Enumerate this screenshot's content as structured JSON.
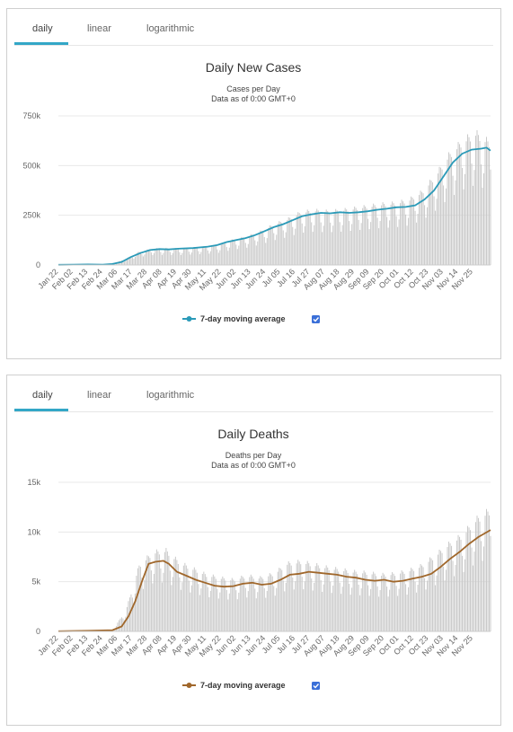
{
  "panels": [
    {
      "tabs": [
        "daily",
        "linear",
        "logarithmic"
      ],
      "active_tab": "daily"
    },
    {
      "tabs": [
        "daily",
        "linear",
        "logarithmic"
      ],
      "active_tab": "daily"
    }
  ],
  "colors": {
    "cases_line": "#2a9ab8",
    "deaths_line": "#a0672b",
    "bars": "#c9c9c9",
    "checkbox": "#3a6fd8",
    "tab_underline": "#33a7c7"
  },
  "chart_data": [
    {
      "type": "bar",
      "title": "Daily New Cases",
      "subtitle_lines": [
        "Cases per Day",
        "Data as of 0:00 GMT+0"
      ],
      "xlabel": "",
      "ylabel": "",
      "ylim": [
        0,
        750000
      ],
      "yticks": [
        0,
        250000,
        500000,
        750000
      ],
      "ytick_labels": [
        "0",
        "250k",
        "500k",
        "750k"
      ],
      "xtick_labels": [
        "Jan 22",
        "Feb 02",
        "Feb 13",
        "Feb 24",
        "Mar 06",
        "Mar 17",
        "Mar 28",
        "Apr 08",
        "Apr 19",
        "Apr 30",
        "May 11",
        "May 22",
        "Jun 02",
        "Jun 13",
        "Jun 24",
        "Jul 05",
        "Jul 16",
        "Jul 27",
        "Aug 07",
        "Aug 18",
        "Aug 29",
        "Sep 09",
        "Sep 20",
        "Oct 01",
        "Oct 12",
        "Oct 23",
        "Nov 03",
        "Nov 14",
        "Nov 25"
      ],
      "grid": true,
      "legend": {
        "label": "7-day moving average",
        "checked": true,
        "placement": "bottom-center"
      },
      "series": [
        {
          "name": "7-day moving average",
          "kind": "line",
          "points": [
            [
              0,
              1000
            ],
            [
              11,
              2000
            ],
            [
              22,
              2500
            ],
            [
              33,
              2000
            ],
            [
              40,
              5000
            ],
            [
              47,
              15000
            ],
            [
              54,
              40000
            ],
            [
              61,
              60000
            ],
            [
              68,
              75000
            ],
            [
              75,
              80000
            ],
            [
              82,
              78000
            ],
            [
              89,
              82000
            ],
            [
              100,
              85000
            ],
            [
              111,
              92000
            ],
            [
              118,
              100000
            ],
            [
              125,
              115000
            ],
            [
              132,
              125000
            ],
            [
              139,
              135000
            ],
            [
              146,
              150000
            ],
            [
              153,
              170000
            ],
            [
              160,
              190000
            ],
            [
              167,
              205000
            ],
            [
              174,
              225000
            ],
            [
              181,
              245000
            ],
            [
              188,
              255000
            ],
            [
              195,
              262000
            ],
            [
              202,
              260000
            ],
            [
              209,
              265000
            ],
            [
              216,
              262000
            ],
            [
              223,
              265000
            ],
            [
              230,
              270000
            ],
            [
              237,
              278000
            ],
            [
              244,
              283000
            ],
            [
              251,
              290000
            ],
            [
              258,
              292000
            ],
            [
              265,
              300000
            ],
            [
              272,
              330000
            ],
            [
              279,
              375000
            ],
            [
              286,
              445000
            ],
            [
              293,
              515000
            ],
            [
              300,
              560000
            ],
            [
              307,
              580000
            ],
            [
              314,
              585000
            ],
            [
              318,
              590000
            ],
            [
              321,
              575000
            ]
          ]
        }
      ],
      "daily_bars_envelope": {
        "x_day": [
          0,
          30,
          40,
          50,
          60,
          70,
          80,
          90,
          100,
          110,
          120,
          130,
          140,
          150,
          160,
          170,
          180,
          190,
          200,
          210,
          220,
          230,
          240,
          250,
          260,
          270,
          280,
          290,
          300,
          310,
          321
        ],
        "y": [
          1000,
          2000,
          6000,
          30000,
          65000,
          80000,
          82000,
          80000,
          85000,
          90000,
          100000,
          125000,
          140000,
          165000,
          200000,
          225000,
          260000,
          270000,
          265000,
          270000,
          280000,
          290000,
          300000,
          305000,
          320000,
          360000,
          440000,
          540000,
          610000,
          650000,
          600000
        ]
      }
    },
    {
      "type": "bar",
      "title": "Daily Deaths",
      "subtitle_lines": [
        "Deaths per Day",
        "Data as of 0:00 GMT+0"
      ],
      "xlabel": "",
      "ylabel": "",
      "ylim": [
        0,
        15000
      ],
      "yticks": [
        0,
        5000,
        10000,
        15000
      ],
      "ytick_labels": [
        "0",
        "5k",
        "10k",
        "15k"
      ],
      "xtick_labels": [
        "Jan 22",
        "Feb 02",
        "Feb 13",
        "Feb 24",
        "Mar 06",
        "Mar 17",
        "Mar 28",
        "Apr 08",
        "Apr 19",
        "Apr 30",
        "May 11",
        "May 22",
        "Jun 02",
        "Jun 13",
        "Jun 24",
        "Jul 05",
        "Jul 16",
        "Jul 27",
        "Aug 07",
        "Aug 18",
        "Aug 29",
        "Sep 09",
        "Sep 20",
        "Oct 01",
        "Oct 12",
        "Oct 23",
        "Nov 03",
        "Nov 14",
        "Nov 25"
      ],
      "grid": true,
      "legend": {
        "label": "7-day moving average",
        "checked": true,
        "placement": "bottom-center"
      },
      "series": [
        {
          "name": "7-day moving average",
          "kind": "line",
          "points": [
            [
              0,
              20
            ],
            [
              22,
              60
            ],
            [
              40,
              120
            ],
            [
              47,
              500
            ],
            [
              52,
              1500
            ],
            [
              57,
              3000
            ],
            [
              62,
              5000
            ],
            [
              67,
              6800
            ],
            [
              72,
              7000
            ],
            [
              78,
              7100
            ],
            [
              82,
              6800
            ],
            [
              88,
              6000
            ],
            [
              95,
              5600
            ],
            [
              102,
              5200
            ],
            [
              109,
              4900
            ],
            [
              116,
              4600
            ],
            [
              123,
              4500
            ],
            [
              130,
              4550
            ],
            [
              137,
              4800
            ],
            [
              144,
              4900
            ],
            [
              151,
              4700
            ],
            [
              158,
              4800
            ],
            [
              165,
              5200
            ],
            [
              172,
              5700
            ],
            [
              179,
              5800
            ],
            [
              186,
              6000
            ],
            [
              193,
              5900
            ],
            [
              200,
              5800
            ],
            [
              207,
              5700
            ],
            [
              214,
              5500
            ],
            [
              221,
              5400
            ],
            [
              228,
              5200
            ],
            [
              235,
              5100
            ],
            [
              242,
              5200
            ],
            [
              249,
              5000
            ],
            [
              256,
              5100
            ],
            [
              263,
              5300
            ],
            [
              270,
              5500
            ],
            [
              277,
              5800
            ],
            [
              284,
              6500
            ],
            [
              291,
              7300
            ],
            [
              298,
              8000
            ],
            [
              305,
              8800
            ],
            [
              312,
              9500
            ],
            [
              321,
              10200
            ]
          ]
        }
      ],
      "daily_bars_envelope": {
        "x_day": [
          0,
          40,
          50,
          60,
          70,
          80,
          90,
          100,
          110,
          120,
          130,
          140,
          150,
          160,
          170,
          180,
          190,
          200,
          210,
          220,
          230,
          240,
          250,
          260,
          270,
          280,
          290,
          300,
          310,
          321
        ],
        "y": [
          20,
          150,
          2000,
          6500,
          7800,
          8000,
          6800,
          6200,
          5600,
          5300,
          5100,
          5500,
          5300,
          5700,
          6700,
          6900,
          6600,
          6300,
          6100,
          5900,
          5800,
          5600,
          5700,
          6000,
          6500,
          7500,
          8600,
          9500,
          11000,
          12000
        ]
      }
    }
  ]
}
